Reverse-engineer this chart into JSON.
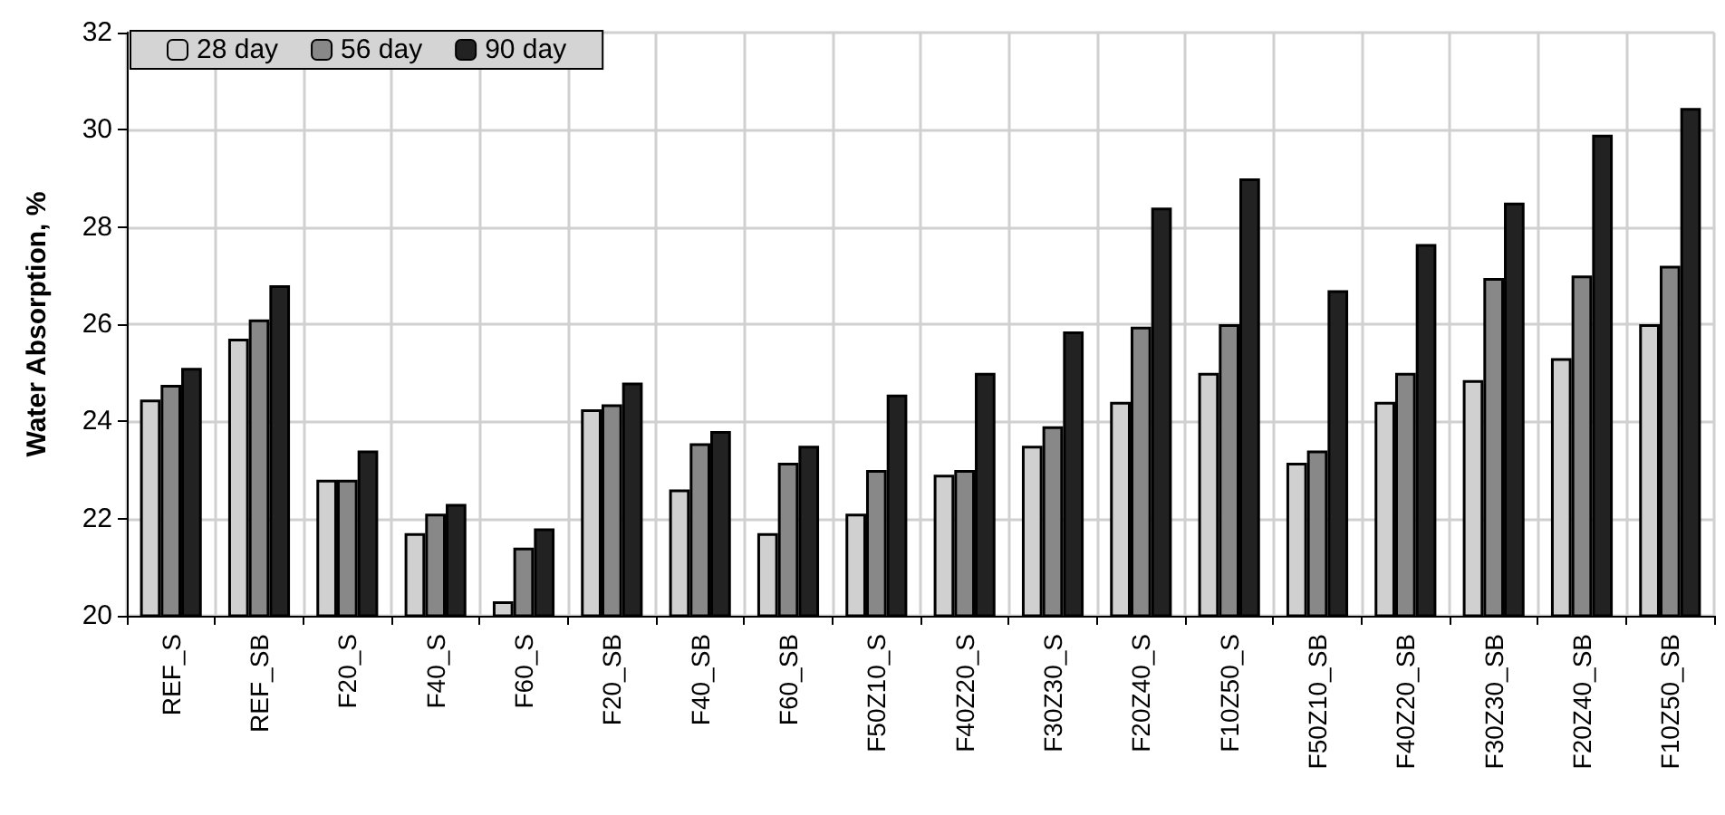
{
  "chart_data": {
    "type": "bar",
    "ylabel": "Water Absorption, %",
    "categories": [
      "REF_S",
      "REF_SB",
      "F20_S",
      "F40_S",
      "F60_S",
      "F20_SB",
      "F40_SB",
      "F60_SB",
      "F50Z10_S",
      "F40Z20_S",
      "F30Z30_S",
      "F20Z40_S",
      "F10Z50_S",
      "F50Z10_SB",
      "F40Z20_SB",
      "F30Z30_SB",
      "F20Z40_SB",
      "F10Z50_SB"
    ],
    "series": [
      {
        "name": "28 day",
        "color": "#d0d0d0",
        "values": [
          24.45,
          25.7,
          22.8,
          21.7,
          20.3,
          24.25,
          22.6,
          21.7,
          22.1,
          22.9,
          23.5,
          24.4,
          25.0,
          23.15,
          24.4,
          24.85,
          25.3,
          26.0
        ]
      },
      {
        "name": "56 day",
        "color": "#888888",
        "values": [
          24.75,
          26.1,
          22.8,
          22.1,
          21.4,
          24.35,
          23.55,
          23.15,
          23.0,
          23.0,
          23.9,
          25.95,
          26.0,
          23.4,
          25.0,
          26.95,
          27.0,
          27.2
        ]
      },
      {
        "name": "90 day",
        "color": "#222222",
        "values": [
          25.1,
          26.8,
          23.4,
          22.3,
          21.8,
          24.8,
          23.8,
          23.5,
          24.55,
          25.0,
          25.85,
          28.4,
          29.0,
          26.7,
          27.65,
          28.5,
          29.9,
          30.45
        ]
      }
    ],
    "ylim": [
      20,
      32
    ],
    "yticks": [
      20,
      22,
      24,
      26,
      28,
      30,
      32
    ],
    "grid": true,
    "legend": "top left"
  }
}
